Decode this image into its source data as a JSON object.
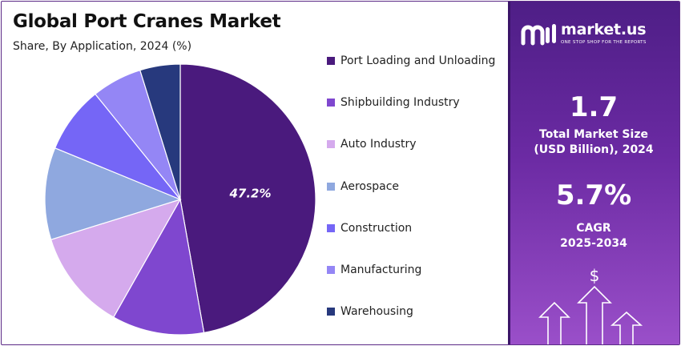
{
  "header": {
    "title": "Global Port Cranes Market",
    "subtitle": "Share, By Application, 2024 (%)"
  },
  "chart_data": {
    "type": "pie",
    "title": "Global Port Cranes Market",
    "subtitle": "Share, By Application, 2024 (%)",
    "categories": [
      "Port Loading and Unloading",
      "Shipbuilding Industry",
      "Auto Industry",
      "Aerospace",
      "Construction",
      "Manufacturing",
      "Warehousing"
    ],
    "values": [
      47.2,
      11.0,
      12.0,
      11.0,
      8.0,
      6.0,
      4.8
    ],
    "colors": [
      "#4a1a7d",
      "#7f47cf",
      "#d5aaed",
      "#8fa8df",
      "#7566f6",
      "#9486f5",
      "#27397d"
    ],
    "data_labels": [
      "47.2%"
    ],
    "legend_position": "right"
  },
  "sidebar": {
    "brand": {
      "name": "market.us",
      "tagline": "ONE STOP SHOP FOR THE REPORTS"
    },
    "market_size": {
      "value": "1.7",
      "label_line1": "Total Market Size",
      "label_line2": "(USD Billion), 2024"
    },
    "cagr": {
      "value": "5.7%",
      "label_line1": "CAGR",
      "label_line2": "2025-2034"
    },
    "icons": {
      "logo": "market-us-logo-icon",
      "dollar": "dollar-icon",
      "growth": "growth-arrows-icon"
    },
    "dollar_symbol": "$"
  }
}
